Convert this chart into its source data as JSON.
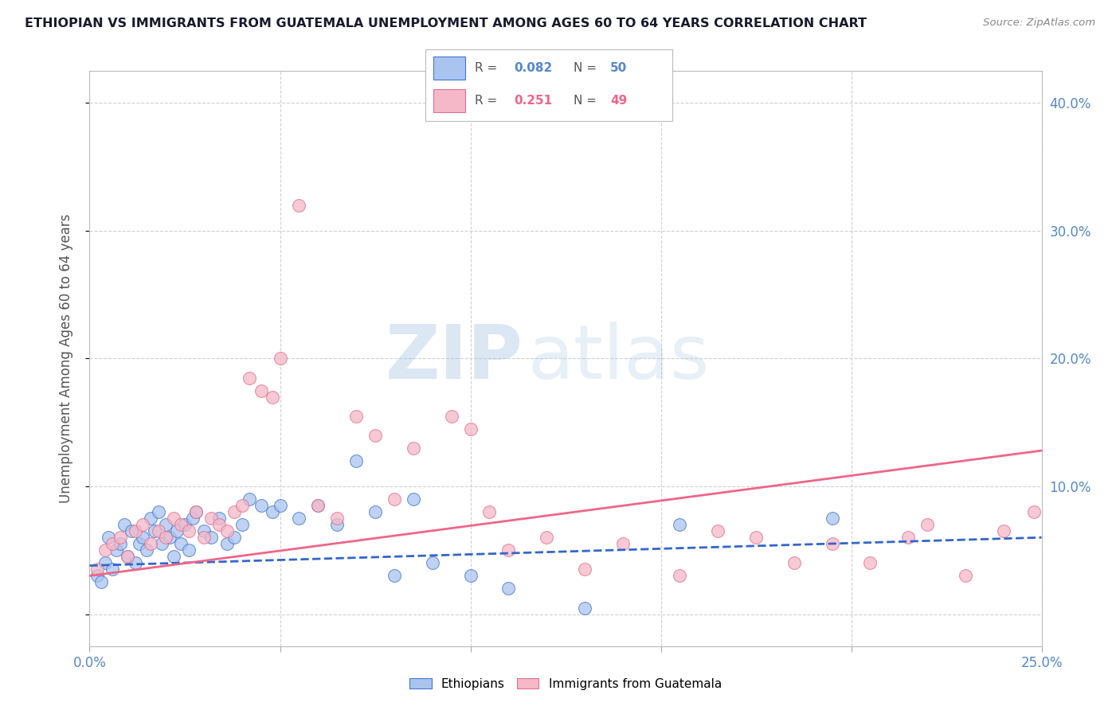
{
  "title": "ETHIOPIAN VS IMMIGRANTS FROM GUATEMALA UNEMPLOYMENT AMONG AGES 60 TO 64 YEARS CORRELATION CHART",
  "source": "Source: ZipAtlas.com",
  "ylabel": "Unemployment Among Ages 60 to 64 years",
  "xlim": [
    0.0,
    0.25
  ],
  "ylim": [
    -0.025,
    0.425
  ],
  "x_ticks": [
    0.0,
    0.05,
    0.1,
    0.15,
    0.2,
    0.25
  ],
  "y_ticks": [
    0.0,
    0.1,
    0.2,
    0.3,
    0.4
  ],
  "y_tick_labels": [
    "",
    "10.0%",
    "20.0%",
    "30.0%",
    "40.0%"
  ],
  "blue_face": "#aac4f0",
  "blue_edge": "#4477cc",
  "pink_face": "#f5b8c8",
  "pink_edge": "#e07090",
  "blue_line": "#3366cc",
  "pink_line": "#ee6688",
  "axis_label_color": "#5588cc",
  "grid_color": "#cccccc",
  "bg_color": "#ffffff",
  "eth_x": [
    0.002,
    0.003,
    0.004,
    0.005,
    0.006,
    0.007,
    0.008,
    0.009,
    0.01,
    0.011,
    0.012,
    0.013,
    0.014,
    0.015,
    0.016,
    0.017,
    0.018,
    0.019,
    0.02,
    0.021,
    0.022,
    0.023,
    0.024,
    0.025,
    0.026,
    0.027,
    0.028,
    0.03,
    0.032,
    0.034,
    0.036,
    0.038,
    0.04,
    0.042,
    0.045,
    0.048,
    0.05,
    0.055,
    0.06,
    0.065,
    0.07,
    0.075,
    0.08,
    0.085,
    0.09,
    0.1,
    0.11,
    0.13,
    0.155,
    0.195
  ],
  "eth_y": [
    0.03,
    0.025,
    0.04,
    0.06,
    0.035,
    0.05,
    0.055,
    0.07,
    0.045,
    0.065,
    0.04,
    0.055,
    0.06,
    0.05,
    0.075,
    0.065,
    0.08,
    0.055,
    0.07,
    0.06,
    0.045,
    0.065,
    0.055,
    0.07,
    0.05,
    0.075,
    0.08,
    0.065,
    0.06,
    0.075,
    0.055,
    0.06,
    0.07,
    0.09,
    0.085,
    0.08,
    0.085,
    0.075,
    0.085,
    0.07,
    0.12,
    0.08,
    0.03,
    0.09,
    0.04,
    0.03,
    0.02,
    0.005,
    0.07,
    0.075
  ],
  "guat_x": [
    0.002,
    0.004,
    0.006,
    0.008,
    0.01,
    0.012,
    0.014,
    0.016,
    0.018,
    0.02,
    0.022,
    0.024,
    0.026,
    0.028,
    0.03,
    0.032,
    0.034,
    0.036,
    0.038,
    0.04,
    0.042,
    0.045,
    0.048,
    0.05,
    0.055,
    0.06,
    0.065,
    0.07,
    0.075,
    0.08,
    0.085,
    0.095,
    0.1,
    0.105,
    0.11,
    0.12,
    0.13,
    0.14,
    0.155,
    0.165,
    0.175,
    0.185,
    0.195,
    0.205,
    0.215,
    0.22,
    0.23,
    0.24,
    0.248
  ],
  "guat_y": [
    0.035,
    0.05,
    0.055,
    0.06,
    0.045,
    0.065,
    0.07,
    0.055,
    0.065,
    0.06,
    0.075,
    0.07,
    0.065,
    0.08,
    0.06,
    0.075,
    0.07,
    0.065,
    0.08,
    0.085,
    0.185,
    0.175,
    0.17,
    0.2,
    0.32,
    0.085,
    0.075,
    0.155,
    0.14,
    0.09,
    0.13,
    0.155,
    0.145,
    0.08,
    0.05,
    0.06,
    0.035,
    0.055,
    0.03,
    0.065,
    0.06,
    0.04,
    0.055,
    0.04,
    0.06,
    0.07,
    0.03,
    0.065,
    0.08
  ],
  "eth_line_x": [
    0.0,
    0.25
  ],
  "eth_line_y": [
    0.038,
    0.06
  ],
  "guat_line_x": [
    0.0,
    0.25
  ],
  "guat_line_y": [
    0.03,
    0.128
  ],
  "watermark1": "ZIP",
  "watermark2": "atlas",
  "marker_size": 130
}
